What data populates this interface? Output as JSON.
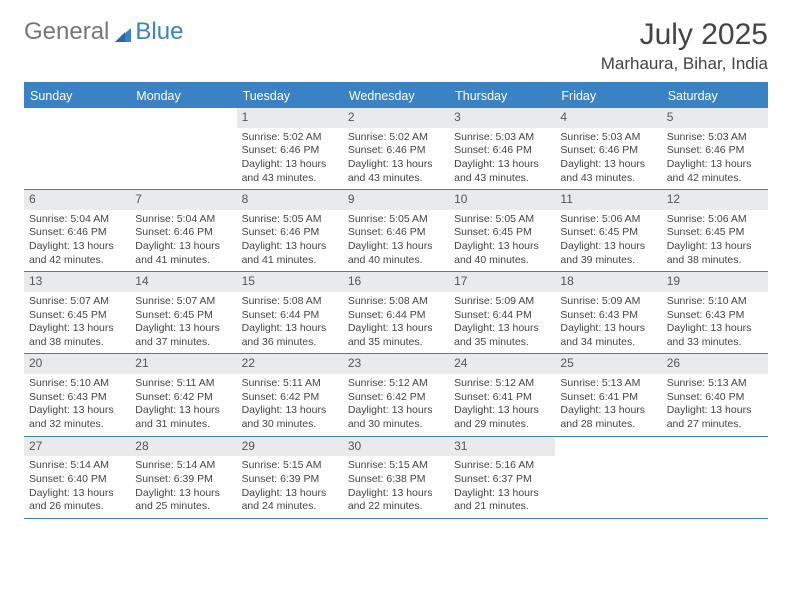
{
  "brand": {
    "part1": "General",
    "part2": "Blue"
  },
  "title": "July 2025",
  "location": "Marhaura, Bihar, India",
  "colors": {
    "accent": "#3b82c4",
    "num_bg": "#e9eaec",
    "text": "#444444",
    "header_text": "#ffffff",
    "bg": "#ffffff"
  },
  "day_headers": [
    "Sunday",
    "Monday",
    "Tuesday",
    "Wednesday",
    "Thursday",
    "Friday",
    "Saturday"
  ],
  "weeks": [
    [
      {
        "n": "",
        "sr": "",
        "ss": "",
        "dl": ""
      },
      {
        "n": "",
        "sr": "",
        "ss": "",
        "dl": ""
      },
      {
        "n": "1",
        "sr": "Sunrise: 5:02 AM",
        "ss": "Sunset: 6:46 PM",
        "dl": "Daylight: 13 hours and 43 minutes."
      },
      {
        "n": "2",
        "sr": "Sunrise: 5:02 AM",
        "ss": "Sunset: 6:46 PM",
        "dl": "Daylight: 13 hours and 43 minutes."
      },
      {
        "n": "3",
        "sr": "Sunrise: 5:03 AM",
        "ss": "Sunset: 6:46 PM",
        "dl": "Daylight: 13 hours and 43 minutes."
      },
      {
        "n": "4",
        "sr": "Sunrise: 5:03 AM",
        "ss": "Sunset: 6:46 PM",
        "dl": "Daylight: 13 hours and 43 minutes."
      },
      {
        "n": "5",
        "sr": "Sunrise: 5:03 AM",
        "ss": "Sunset: 6:46 PM",
        "dl": "Daylight: 13 hours and 42 minutes."
      }
    ],
    [
      {
        "n": "6",
        "sr": "Sunrise: 5:04 AM",
        "ss": "Sunset: 6:46 PM",
        "dl": "Daylight: 13 hours and 42 minutes."
      },
      {
        "n": "7",
        "sr": "Sunrise: 5:04 AM",
        "ss": "Sunset: 6:46 PM",
        "dl": "Daylight: 13 hours and 41 minutes."
      },
      {
        "n": "8",
        "sr": "Sunrise: 5:05 AM",
        "ss": "Sunset: 6:46 PM",
        "dl": "Daylight: 13 hours and 41 minutes."
      },
      {
        "n": "9",
        "sr": "Sunrise: 5:05 AM",
        "ss": "Sunset: 6:46 PM",
        "dl": "Daylight: 13 hours and 40 minutes."
      },
      {
        "n": "10",
        "sr": "Sunrise: 5:05 AM",
        "ss": "Sunset: 6:45 PM",
        "dl": "Daylight: 13 hours and 40 minutes."
      },
      {
        "n": "11",
        "sr": "Sunrise: 5:06 AM",
        "ss": "Sunset: 6:45 PM",
        "dl": "Daylight: 13 hours and 39 minutes."
      },
      {
        "n": "12",
        "sr": "Sunrise: 5:06 AM",
        "ss": "Sunset: 6:45 PM",
        "dl": "Daylight: 13 hours and 38 minutes."
      }
    ],
    [
      {
        "n": "13",
        "sr": "Sunrise: 5:07 AM",
        "ss": "Sunset: 6:45 PM",
        "dl": "Daylight: 13 hours and 38 minutes."
      },
      {
        "n": "14",
        "sr": "Sunrise: 5:07 AM",
        "ss": "Sunset: 6:45 PM",
        "dl": "Daylight: 13 hours and 37 minutes."
      },
      {
        "n": "15",
        "sr": "Sunrise: 5:08 AM",
        "ss": "Sunset: 6:44 PM",
        "dl": "Daylight: 13 hours and 36 minutes."
      },
      {
        "n": "16",
        "sr": "Sunrise: 5:08 AM",
        "ss": "Sunset: 6:44 PM",
        "dl": "Daylight: 13 hours and 35 minutes."
      },
      {
        "n": "17",
        "sr": "Sunrise: 5:09 AM",
        "ss": "Sunset: 6:44 PM",
        "dl": "Daylight: 13 hours and 35 minutes."
      },
      {
        "n": "18",
        "sr": "Sunrise: 5:09 AM",
        "ss": "Sunset: 6:43 PM",
        "dl": "Daylight: 13 hours and 34 minutes."
      },
      {
        "n": "19",
        "sr": "Sunrise: 5:10 AM",
        "ss": "Sunset: 6:43 PM",
        "dl": "Daylight: 13 hours and 33 minutes."
      }
    ],
    [
      {
        "n": "20",
        "sr": "Sunrise: 5:10 AM",
        "ss": "Sunset: 6:43 PM",
        "dl": "Daylight: 13 hours and 32 minutes."
      },
      {
        "n": "21",
        "sr": "Sunrise: 5:11 AM",
        "ss": "Sunset: 6:42 PM",
        "dl": "Daylight: 13 hours and 31 minutes."
      },
      {
        "n": "22",
        "sr": "Sunrise: 5:11 AM",
        "ss": "Sunset: 6:42 PM",
        "dl": "Daylight: 13 hours and 30 minutes."
      },
      {
        "n": "23",
        "sr": "Sunrise: 5:12 AM",
        "ss": "Sunset: 6:42 PM",
        "dl": "Daylight: 13 hours and 30 minutes."
      },
      {
        "n": "24",
        "sr": "Sunrise: 5:12 AM",
        "ss": "Sunset: 6:41 PM",
        "dl": "Daylight: 13 hours and 29 minutes."
      },
      {
        "n": "25",
        "sr": "Sunrise: 5:13 AM",
        "ss": "Sunset: 6:41 PM",
        "dl": "Daylight: 13 hours and 28 minutes."
      },
      {
        "n": "26",
        "sr": "Sunrise: 5:13 AM",
        "ss": "Sunset: 6:40 PM",
        "dl": "Daylight: 13 hours and 27 minutes."
      }
    ],
    [
      {
        "n": "27",
        "sr": "Sunrise: 5:14 AM",
        "ss": "Sunset: 6:40 PM",
        "dl": "Daylight: 13 hours and 26 minutes."
      },
      {
        "n": "28",
        "sr": "Sunrise: 5:14 AM",
        "ss": "Sunset: 6:39 PM",
        "dl": "Daylight: 13 hours and 25 minutes."
      },
      {
        "n": "29",
        "sr": "Sunrise: 5:15 AM",
        "ss": "Sunset: 6:39 PM",
        "dl": "Daylight: 13 hours and 24 minutes."
      },
      {
        "n": "30",
        "sr": "Sunrise: 5:15 AM",
        "ss": "Sunset: 6:38 PM",
        "dl": "Daylight: 13 hours and 22 minutes."
      },
      {
        "n": "31",
        "sr": "Sunrise: 5:16 AM",
        "ss": "Sunset: 6:37 PM",
        "dl": "Daylight: 13 hours and 21 minutes."
      },
      {
        "n": "",
        "sr": "",
        "ss": "",
        "dl": ""
      },
      {
        "n": "",
        "sr": "",
        "ss": "",
        "dl": ""
      }
    ]
  ]
}
